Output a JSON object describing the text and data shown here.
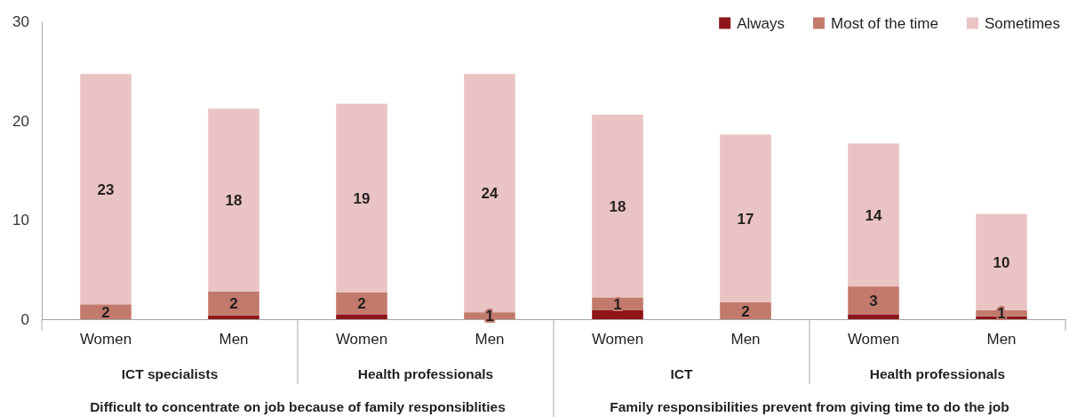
{
  "chart_data": {
    "type": "bar",
    "stacked": true,
    "categories": [
      "Women",
      "Men",
      "Women",
      "Men",
      "Women",
      "Men",
      "Women",
      "Men"
    ],
    "series": [
      {
        "name": "Always",
        "color": "#8e1519",
        "values": [
          0,
          0.4,
          0.5,
          0,
          0.9,
          0,
          0.5,
          0.3
        ],
        "value_labels": [
          null,
          null,
          null,
          null,
          null,
          null,
          null,
          null
        ]
      },
      {
        "name": "Most of the time",
        "color": "#c27a6c",
        "values": [
          1.5,
          2.4,
          2.2,
          0.7,
          1.3,
          1.7,
          2.8,
          0.6
        ],
        "value_labels": [
          "2",
          "2",
          "2",
          "1",
          "1",
          "2",
          "3",
          "1"
        ]
      },
      {
        "name": "Sometimes",
        "color": "#eac4c4",
        "values": [
          23.2,
          18.4,
          19.0,
          24.0,
          18.4,
          16.9,
          14.4,
          9.7
        ],
        "value_labels": [
          "23",
          "18",
          "19",
          "24",
          "18",
          "17",
          "14",
          "10"
        ]
      }
    ],
    "ylim": [
      0,
      30
    ],
    "yticks": [
      0,
      10,
      20,
      30
    ],
    "legend": "top right",
    "annotations": [
      "ICT specialists",
      "Health professionals",
      "ICT",
      "Health professionals",
      "Difficult to concentrate on job because of family responsiblities",
      "Family responsibilities prevent from giving time to do the job"
    ]
  }
}
